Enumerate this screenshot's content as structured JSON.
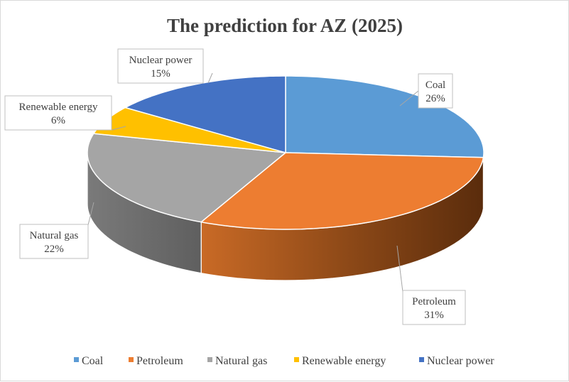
{
  "chart_data": {
    "type": "pie",
    "title": "The prediction for AZ (2025)",
    "categories": [
      "Coal",
      "Petroleum",
      "Natural gas",
      "Renewable energy",
      "Nuclear power"
    ],
    "values": [
      26,
      31,
      22,
      6,
      15
    ],
    "value_labels": [
      "26%",
      "31%",
      "22%",
      "6%",
      "15%"
    ],
    "colors": [
      "#5b9bd5",
      "#ed7d31",
      "#a5a5a5",
      "#ffc000",
      "#4472c4"
    ],
    "legend_position": "bottom",
    "style": "3d-pie"
  }
}
